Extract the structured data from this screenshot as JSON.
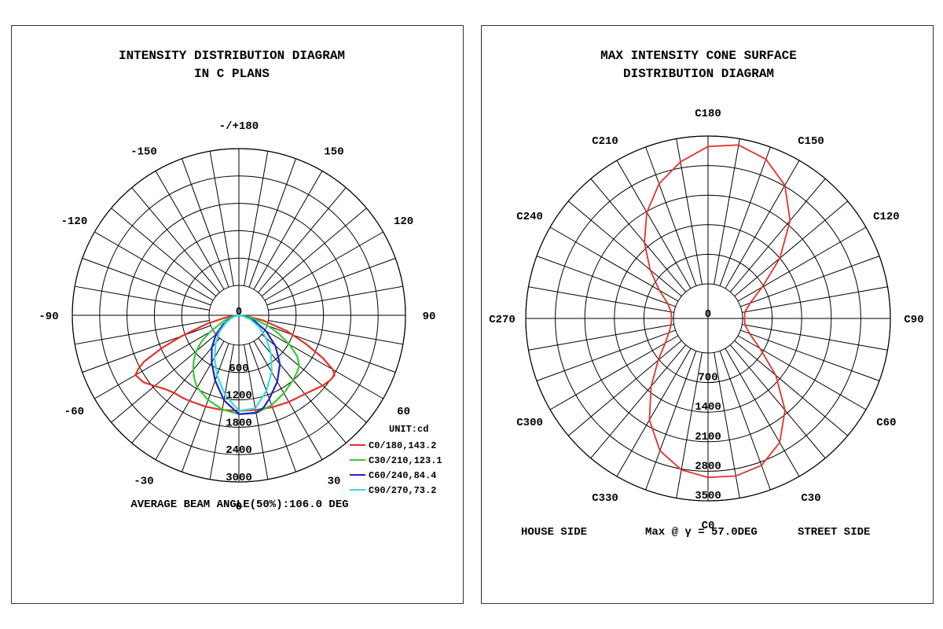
{
  "left": {
    "title_line1": "INTENSITY DISTRIBUTION DIAGRAM",
    "title_line2": "IN C PLANS",
    "footer": "AVERAGE BEAM ANGLE(50%):106.0 DEG",
    "unit": "UNIT:cd"
  },
  "right": {
    "title_line1": "MAX INTENSITY CONE SURFACE",
    "title_line2": "DISTRIBUTION DIAGRAM",
    "house_side": "HOUSE SIDE",
    "max_text": "Max @ γ = 57.0DEG",
    "street_side": "STREET SIDE"
  },
  "chart_data": [
    {
      "type": "line",
      "subtype": "polar",
      "title": "INTENSITY DISTRIBUTION DIAGRAM IN C PLANS",
      "unit": "cd",
      "angle_labels": [
        "-/+180",
        "150",
        "120",
        "90",
        "60",
        "30",
        "0",
        "-30",
        "-60",
        "-90",
        "-120",
        "-150"
      ],
      "angle_label_values": [
        180,
        150,
        120,
        90,
        60,
        30,
        0,
        -30,
        -60,
        -90,
        -120,
        -150
      ],
      "ring_labels": [
        "0",
        "600",
        "1200",
        "1800",
        "2400",
        "3000"
      ],
      "ring_values": [
        0,
        600,
        1200,
        1800,
        2400,
        3000
      ],
      "r_max": 3000,
      "angle_step": 10,
      "legend_position": "bottom-right",
      "series": [
        {
          "name": "C0/180,143.2",
          "color": "#e8302a",
          "points": [
            [
              -90,
              0
            ],
            [
              -85,
              80
            ],
            [
              -80,
              260
            ],
            [
              -75,
              600
            ],
            [
              -70,
              1100
            ],
            [
              -67,
              1500
            ],
            [
              -64,
              1900
            ],
            [
              -62,
              2050
            ],
            [
              -60,
              2150
            ],
            [
              -55,
              2100
            ],
            [
              -50,
              1980
            ],
            [
              -45,
              1880
            ],
            [
              -40,
              1820
            ],
            [
              -35,
              1800
            ],
            [
              -30,
              1780
            ],
            [
              -20,
              1750
            ],
            [
              -10,
              1730
            ],
            [
              0,
              1720
            ],
            [
              10,
              1730
            ],
            [
              20,
              1760
            ],
            [
              30,
              1800
            ],
            [
              40,
              1850
            ],
            [
              45,
              1900
            ],
            [
              50,
              1970
            ],
            [
              55,
              2020
            ],
            [
              58,
              2030
            ],
            [
              60,
              1950
            ],
            [
              63,
              1700
            ],
            [
              67,
              1300
            ],
            [
              72,
              900
            ],
            [
              78,
              450
            ],
            [
              84,
              130
            ],
            [
              90,
              0
            ]
          ]
        },
        {
          "name": "C30/210,123.1",
          "color": "#33cc33",
          "points": [
            [
              -90,
              0
            ],
            [
              -80,
              90
            ],
            [
              -70,
              280
            ],
            [
              -60,
              600
            ],
            [
              -55,
              820
            ],
            [
              -50,
              1000
            ],
            [
              -45,
              1150
            ],
            [
              -40,
              1280
            ],
            [
              -35,
              1400
            ],
            [
              -30,
              1500
            ],
            [
              -20,
              1620
            ],
            [
              -10,
              1720
            ],
            [
              0,
              1780
            ],
            [
              10,
              1790
            ],
            [
              20,
              1720
            ],
            [
              30,
              1620
            ],
            [
              40,
              1520
            ],
            [
              45,
              1470
            ],
            [
              50,
              1420
            ],
            [
              55,
              1280
            ],
            [
              60,
              1050
            ],
            [
              65,
              800
            ],
            [
              70,
              560
            ],
            [
              78,
              250
            ],
            [
              85,
              70
            ],
            [
              90,
              0
            ]
          ]
        },
        {
          "name": "C60/240,84.4",
          "color": "#2222cc",
          "points": [
            [
              -90,
              0
            ],
            [
              -80,
              60
            ],
            [
              -70,
              160
            ],
            [
              -60,
              330
            ],
            [
              -50,
              540
            ],
            [
              -40,
              760
            ],
            [
              -30,
              980
            ],
            [
              -20,
              1250
            ],
            [
              -10,
              1550
            ],
            [
              0,
              1780
            ],
            [
              10,
              1780
            ],
            [
              15,
              1720
            ],
            [
              20,
              1600
            ],
            [
              30,
              1380
            ],
            [
              40,
              1150
            ],
            [
              50,
              860
            ],
            [
              60,
              560
            ],
            [
              70,
              300
            ],
            [
              80,
              100
            ],
            [
              90,
              0
            ]
          ]
        },
        {
          "name": "C90/270,73.2",
          "color": "#33dddd",
          "points": [
            [
              -90,
              0
            ],
            [
              -80,
              50
            ],
            [
              -70,
              140
            ],
            [
              -60,
              270
            ],
            [
              -50,
              450
            ],
            [
              -40,
              650
            ],
            [
              -30,
              880
            ],
            [
              -20,
              1150
            ],
            [
              -10,
              1450
            ],
            [
              0,
              1720
            ],
            [
              10,
              1700
            ],
            [
              20,
              1450
            ],
            [
              30,
              1180
            ],
            [
              40,
              900
            ],
            [
              50,
              640
            ],
            [
              60,
              420
            ],
            [
              70,
              220
            ],
            [
              80,
              70
            ],
            [
              90,
              0
            ]
          ]
        }
      ]
    },
    {
      "type": "line",
      "subtype": "polar",
      "title": "MAX INTENSITY CONE SURFACE DISTRIBUTION DIAGRAM",
      "angle_labels": [
        "C180",
        "C150",
        "C120",
        "C90",
        "C60",
        "C30",
        "C0",
        "C330",
        "C300",
        "C270",
        "C240",
        "C210"
      ],
      "angle_label_values": [
        180,
        150,
        120,
        90,
        60,
        30,
        0,
        330,
        300,
        270,
        240,
        210
      ],
      "ring_labels": [
        "0",
        "700",
        "1400",
        "2100",
        "2800",
        "3500"
      ],
      "ring_values": [
        0,
        700,
        1400,
        2100,
        2800,
        3500
      ],
      "r_max": 3500,
      "angle_step": 10,
      "series": [
        {
          "name": "Max",
          "color": "#e8302a",
          "points": [
            [
              0,
              3050
            ],
            [
              10,
              3070
            ],
            [
              20,
              3000
            ],
            [
              30,
              2750
            ],
            [
              40,
              2300
            ],
            [
              50,
              1700
            ],
            [
              60,
              1150
            ],
            [
              70,
              850
            ],
            [
              80,
              720
            ],
            [
              90,
              700
            ],
            [
              100,
              720
            ],
            [
              110,
              860
            ],
            [
              120,
              1200
            ],
            [
              130,
              1800
            ],
            [
              140,
              2450
            ],
            [
              150,
              2950
            ],
            [
              160,
              3250
            ],
            [
              170,
              3380
            ],
            [
              180,
              3300
            ],
            [
              190,
              3050
            ],
            [
              200,
              2750
            ],
            [
              210,
              2350
            ],
            [
              220,
              1900
            ],
            [
              230,
              1450
            ],
            [
              240,
              1080
            ],
            [
              250,
              820
            ],
            [
              260,
              720
            ],
            [
              270,
              700
            ],
            [
              280,
              720
            ],
            [
              290,
              800
            ],
            [
              300,
              950
            ],
            [
              310,
              1250
            ],
            [
              320,
              1700
            ],
            [
              330,
              2250
            ],
            [
              340,
              2700
            ],
            [
              350,
              2950
            ],
            [
              360,
              3050
            ]
          ]
        }
      ]
    }
  ]
}
